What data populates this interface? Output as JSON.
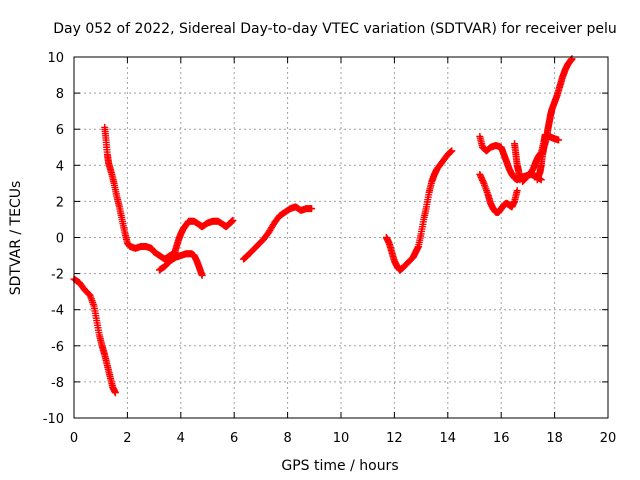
{
  "chart_data": {
    "type": "scatter",
    "title": "Day 052 of 2022, Sidereal Day-to-day VTEC variation (SDTVAR) for receiver pelu",
    "xlabel": "GPS time / hours",
    "ylabel": "SDTVAR / TECUs",
    "xlim": [
      0,
      20
    ],
    "ylim": [
      -10,
      10
    ],
    "xticks": [
      0,
      2,
      4,
      6,
      8,
      10,
      12,
      14,
      16,
      18,
      20
    ],
    "yticks": [
      -10,
      -8,
      -6,
      -4,
      -2,
      0,
      2,
      4,
      6,
      8,
      10
    ],
    "grid": true,
    "marker": "+",
    "color": "#ff0000",
    "segments": [
      [
        [
          0.0,
          -2.3
        ],
        [
          0.2,
          -2.5
        ],
        [
          0.4,
          -2.9
        ],
        [
          0.6,
          -3.2
        ],
        [
          0.75,
          -3.8
        ],
        [
          0.85,
          -4.6
        ],
        [
          0.95,
          -5.4
        ],
        [
          1.05,
          -6.0
        ],
        [
          1.15,
          -6.5
        ],
        [
          1.25,
          -7.1
        ],
        [
          1.35,
          -7.7
        ],
        [
          1.45,
          -8.3
        ],
        [
          1.55,
          -8.6
        ]
      ],
      [
        [
          1.15,
          6.1
        ],
        [
          1.2,
          5.4
        ],
        [
          1.25,
          4.6
        ],
        [
          1.3,
          4.1
        ],
        [
          1.4,
          3.6
        ],
        [
          1.5,
          3.0
        ],
        [
          1.6,
          2.3
        ],
        [
          1.7,
          1.7
        ],
        [
          1.8,
          1.0
        ],
        [
          1.9,
          0.3
        ],
        [
          2.0,
          -0.3
        ],
        [
          2.1,
          -0.5
        ],
        [
          2.3,
          -0.6
        ],
        [
          2.5,
          -0.5
        ],
        [
          2.7,
          -0.5
        ],
        [
          2.9,
          -0.6
        ],
        [
          3.0,
          -0.8
        ],
        [
          3.2,
          -1.0
        ],
        [
          3.4,
          -1.2
        ],
        [
          3.6,
          -1.0
        ],
        [
          3.8,
          -0.8
        ]
      ],
      [
        [
          3.2,
          -1.8
        ],
        [
          3.4,
          -1.6
        ],
        [
          3.6,
          -1.3
        ],
        [
          3.8,
          -1.1
        ],
        [
          4.0,
          -1.0
        ],
        [
          4.2,
          -0.9
        ],
        [
          4.4,
          -0.9
        ],
        [
          4.5,
          -1.0
        ],
        [
          4.6,
          -1.3
        ],
        [
          4.7,
          -1.7
        ],
        [
          4.8,
          -2.1
        ]
      ],
      [
        [
          3.8,
          -0.7
        ],
        [
          3.9,
          -0.2
        ],
        [
          4.0,
          0.2
        ],
        [
          4.1,
          0.5
        ],
        [
          4.2,
          0.7
        ],
        [
          4.3,
          0.9
        ],
        [
          4.5,
          0.9
        ],
        [
          4.7,
          0.7
        ],
        [
          4.8,
          0.6
        ],
        [
          5.0,
          0.8
        ],
        [
          5.2,
          0.9
        ],
        [
          5.4,
          0.9
        ],
        [
          5.6,
          0.7
        ],
        [
          5.7,
          0.6
        ],
        [
          5.85,
          0.8
        ],
        [
          5.95,
          0.95
        ]
      ],
      [
        [
          6.35,
          -1.2
        ],
        [
          6.5,
          -1.0
        ],
        [
          6.7,
          -0.7
        ],
        [
          6.9,
          -0.4
        ],
        [
          7.1,
          -0.1
        ],
        [
          7.3,
          0.3
        ],
        [
          7.5,
          0.8
        ],
        [
          7.7,
          1.2
        ],
        [
          7.9,
          1.4
        ],
        [
          8.1,
          1.6
        ],
        [
          8.3,
          1.7
        ],
        [
          8.5,
          1.5
        ],
        [
          8.7,
          1.6
        ],
        [
          8.9,
          1.6
        ]
      ],
      [
        [
          11.7,
          0.0
        ],
        [
          11.8,
          -0.3
        ],
        [
          11.9,
          -0.8
        ],
        [
          12.0,
          -1.3
        ],
        [
          12.1,
          -1.6
        ],
        [
          12.2,
          -1.8
        ],
        [
          12.3,
          -1.7
        ],
        [
          12.5,
          -1.4
        ],
        [
          12.7,
          -1.1
        ],
        [
          12.8,
          -0.8
        ],
        [
          12.9,
          -0.5
        ],
        [
          13.0,
          0.2
        ],
        [
          13.1,
          1.0
        ],
        [
          13.2,
          1.7
        ],
        [
          13.3,
          2.5
        ],
        [
          13.4,
          3.1
        ],
        [
          13.5,
          3.5
        ],
        [
          13.6,
          3.8
        ],
        [
          13.8,
          4.2
        ],
        [
          14.0,
          4.6
        ],
        [
          14.15,
          4.8
        ]
      ],
      [
        [
          15.2,
          5.6
        ],
        [
          15.3,
          5.0
        ],
        [
          15.45,
          4.8
        ],
        [
          15.6,
          5.0
        ],
        [
          15.8,
          5.1
        ],
        [
          16.0,
          5.0
        ],
        [
          16.1,
          4.6
        ],
        [
          16.2,
          4.2
        ],
        [
          16.3,
          3.8
        ],
        [
          16.4,
          3.5
        ],
        [
          16.5,
          3.3
        ],
        [
          16.6,
          3.2
        ],
        [
          16.7,
          3.3
        ],
        [
          16.9,
          3.4
        ],
        [
          17.1,
          3.5
        ],
        [
          17.3,
          3.4
        ],
        [
          17.5,
          3.2
        ]
      ],
      [
        [
          15.2,
          3.5
        ],
        [
          15.35,
          3.0
        ],
        [
          15.5,
          2.4
        ],
        [
          15.6,
          1.9
        ],
        [
          15.7,
          1.6
        ],
        [
          15.8,
          1.4
        ],
        [
          15.9,
          1.4
        ],
        [
          16.0,
          1.6
        ],
        [
          16.1,
          1.8
        ],
        [
          16.2,
          1.9
        ],
        [
          16.3,
          1.8
        ],
        [
          16.4,
          1.7
        ],
        [
          16.5,
          2.0
        ],
        [
          16.6,
          2.6
        ]
      ],
      [
        [
          16.5,
          5.2
        ],
        [
          16.55,
          4.6
        ],
        [
          16.6,
          4.0
        ],
        [
          16.65,
          3.7
        ],
        [
          16.7,
          3.2
        ]
      ],
      [
        [
          16.8,
          3.1
        ],
        [
          17.0,
          3.4
        ],
        [
          17.2,
          3.8
        ],
        [
          17.3,
          4.2
        ],
        [
          17.4,
          4.5
        ],
        [
          17.5,
          4.7
        ],
        [
          17.6,
          5.3
        ],
        [
          17.65,
          5.7
        ],
        [
          17.8,
          5.6
        ],
        [
          17.95,
          5.5
        ],
        [
          18.15,
          5.4
        ]
      ],
      [
        [
          17.35,
          3.2
        ],
        [
          17.45,
          3.6
        ],
        [
          17.5,
          4.0
        ],
        [
          17.55,
          4.6
        ],
        [
          17.6,
          5.0
        ],
        [
          17.7,
          5.5
        ],
        [
          17.75,
          6.0
        ],
        [
          17.8,
          6.4
        ],
        [
          17.85,
          6.8
        ],
        [
          17.9,
          7.1
        ],
        [
          18.0,
          7.5
        ],
        [
          18.1,
          7.9
        ],
        [
          18.2,
          8.4
        ],
        [
          18.3,
          8.9
        ],
        [
          18.4,
          9.3
        ],
        [
          18.5,
          9.6
        ],
        [
          18.6,
          9.8
        ],
        [
          18.65,
          9.9
        ]
      ]
    ]
  }
}
